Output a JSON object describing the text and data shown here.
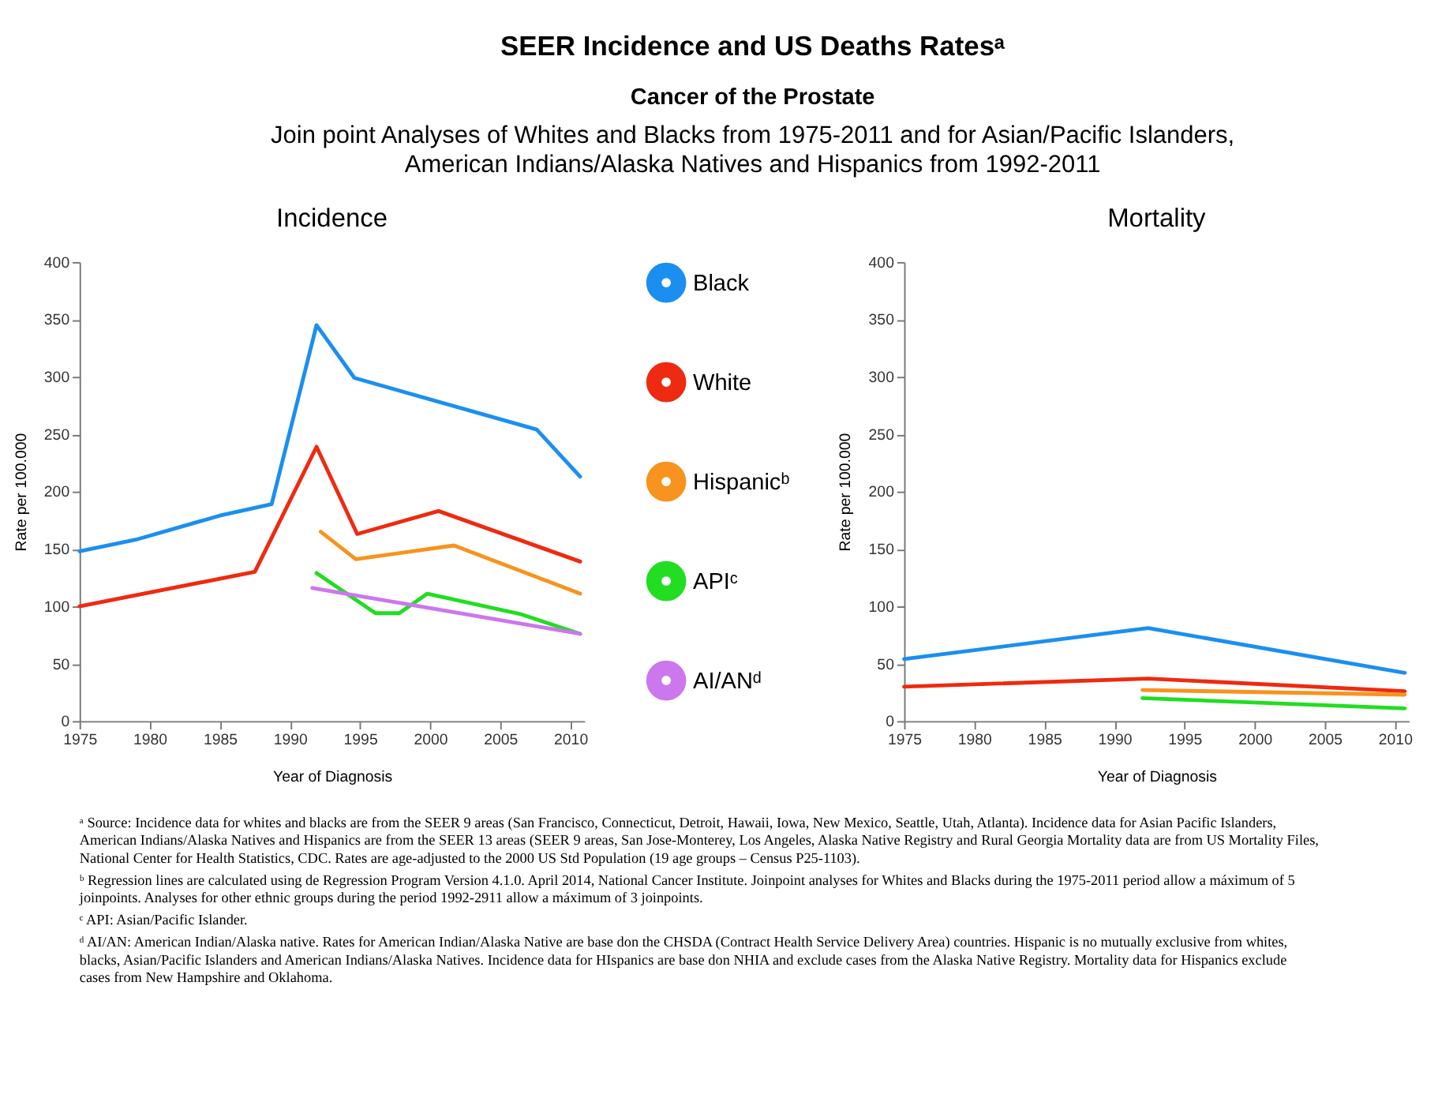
{
  "chart_data": [
    {
      "type": "other",
      "title": "SEER Incidence and US Deaths Ratesᵃ",
      "subtitle": "Cancer of the Prostate",
      "annotations": [
        "Join point Analyses of Whites and Blacks from 1975-2011 and for Asian/Pacific Islanders, American Indians/Alaska Natives and Hispanics from 1992-2011"
      ]
    },
    {
      "type": "line",
      "title": "Incidence",
      "xlabel": "Year of Diagnosis",
      "ylabel": "Rate per 100.000",
      "xlim": [
        1975,
        2011
      ],
      "xticks": [
        1975,
        1980,
        1985,
        1990,
        1995,
        2000,
        2005,
        2010
      ],
      "ylim": [
        0,
        400
      ],
      "yticks": [
        0,
        50,
        100,
        150,
        200,
        250,
        300,
        350,
        400
      ],
      "legend": "right",
      "series": [
        {
          "name": "Black",
          "color": "#1b8ff0",
          "x": [
            1975,
            1979,
            1985,
            1988.7,
            1991.9,
            1994.6,
            2007.6,
            2010.7
          ],
          "values": [
            148,
            158,
            179,
            189,
            345,
            299,
            254,
            213
          ]
        },
        {
          "name": "White",
          "color": "#ee2a10",
          "x": [
            1975,
            1987.5,
            1991.9,
            1994.8,
            2000.6,
            2010.7
          ],
          "values": [
            100,
            130,
            239,
            163,
            183,
            139
          ]
        },
        {
          "name": "Hispanicᵇ",
          "color": "#f7931e",
          "x": [
            1992.2,
            1994.7,
            2001.7,
            2010.7
          ],
          "values": [
            165,
            141,
            153,
            111
          ]
        },
        {
          "name": "APIᶜ",
          "color": "#22dd22",
          "x": [
            1991.9,
            1996.1,
            1997.8,
            1999.8,
            2006.5,
            2010.7
          ],
          "values": [
            129,
            94,
            94,
            111,
            93,
            76
          ]
        },
        {
          "name": "AI/ANᵈ",
          "color": "#cc77ee",
          "x": [
            1991.6,
            2010.7
          ],
          "values": [
            116,
            76
          ]
        }
      ]
    },
    {
      "type": "line",
      "title": "Mortality",
      "xlabel": "Year of Diagnosis",
      "ylabel": "Rate per 100.000",
      "xlim": [
        1975,
        2011
      ],
      "xticks": [
        1975,
        1980,
        1985,
        1990,
        1995,
        2000,
        2005,
        2010
      ],
      "ylim": [
        0,
        400
      ],
      "yticks": [
        0,
        50,
        100,
        150,
        200,
        250,
        300,
        350,
        400
      ],
      "series": [
        {
          "color": "#1b8ff0",
          "x": [
            1975,
            1992.4,
            2010.7
          ],
          "values": [
            54,
            81,
            42
          ]
        },
        {
          "color": "#ee2a10",
          "x": [
            1975,
            1992.4,
            2010.7
          ],
          "values": [
            30,
            37,
            26
          ]
        },
        {
          "color": "#f7931e",
          "x": [
            1992,
            2010.7
          ],
          "values": [
            27,
            23
          ]
        },
        {
          "color": "#22dd22",
          "x": [
            1992,
            2010.7
          ],
          "values": [
            20,
            11
          ]
        }
      ]
    },
    {
      "type": "other",
      "annotations": [
        "ᵃ Source: Incidence data for whites and blacks are from the SEER 9 areas (San Francisco, Connecticut, Detroit, Hawaii, Iowa, New Mexico, Seattle, Utah, Atlanta). Incidence data for Asian Pacific Islanders, American Indians/Alaska Natives and Hispanics are from the SEER 13 areas (SEER 9 areas, San Jose-Monterey, Los Angeles, Alaska Native Registry and Rural Georgia Mortality data are from US Mortality Files, National Center for Health Statistics, CDC. Rates are age-adjusted to the 2000 US Std Population (19 age groups – Census P25-1103).",
        "ᵇ Regression lines are calculated using de Regression Program Version 4.1.0. April 2014, National Cancer Institute. Joinpoint analyses for Whites and Blacks during the 1975-2011 period allow a máximum of 5 joinpoints. Analyses for other ethnic groups during the period 1992-2911 allow a máximum of 3 joinpoints.",
        "ᶜ API: Asian/Pacific Islander.",
        "ᵈ AI/AN: American Indian/Alaska native. Rates for American Indian/Alaska Native are base don the CHSDA (Contract Health Service Delivery Area) countries. Hispanic is no mutually exclusive from whites, blacks, Asian/Pacific Islanders and American Indians/Alaska Natives. Incidence data for HIspanics are base don NHIA and exclude cases from the Alaska Native Registry. Mortality data for Hispanics exclude cases from New Hampshire and Oklahoma."
      ]
    }
  ]
}
